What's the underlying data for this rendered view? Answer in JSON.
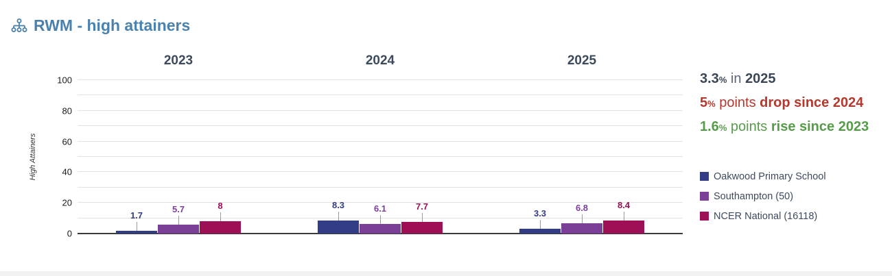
{
  "title": {
    "text": "RWM - high attainers",
    "color": "#4a82ad",
    "icon": "sitemap-icon"
  },
  "chart_data": {
    "type": "bar",
    "title": "RWM - high attainers",
    "xlabel": "",
    "ylabel": "High Attainers",
    "ylim": [
      0,
      100
    ],
    "yticks": [
      0,
      20,
      40,
      60,
      80,
      100
    ],
    "grid": true,
    "gridline_step": 10,
    "legend_position": "right",
    "categories": [
      "2023",
      "2024",
      "2025"
    ],
    "series": [
      {
        "name": "Oakwood Primary School",
        "color": "#333d85",
        "values": [
          1.7,
          8.3,
          3.3
        ],
        "value_labels": [
          "1.7",
          "8.3",
          "3.3"
        ]
      },
      {
        "name": "Southampton (50)",
        "color": "#7b3f98",
        "values": [
          5.7,
          6.1,
          6.8
        ],
        "value_labels": [
          "5.7",
          "6.1",
          "6.8"
        ]
      },
      {
        "name": "NCER National (16118)",
        "color": "#9e0f55",
        "values": [
          8.0,
          7.7,
          8.4
        ],
        "value_labels": [
          "8",
          "7.7",
          "8.4"
        ]
      }
    ]
  },
  "annotations": [
    {
      "name": "latest-value",
      "color": "#3a4656",
      "segments": [
        {
          "t": "3.3",
          "b": true
        },
        {
          "t": "%",
          "b": true,
          "small": true
        },
        {
          "t": " in ",
          "b": false,
          "c": "#5a6676"
        },
        {
          "t": "2025",
          "b": true
        }
      ]
    },
    {
      "name": "change-since-2024",
      "color": "#b5372d",
      "segments": [
        {
          "t": "5",
          "b": true
        },
        {
          "t": "%",
          "b": true,
          "small": true
        },
        {
          "t": " points ",
          "b": false
        },
        {
          "t": "drop since 2024",
          "b": true
        }
      ]
    },
    {
      "name": "change-since-2023",
      "color": "#569c48",
      "segments": [
        {
          "t": "1.6",
          "b": true
        },
        {
          "t": "%",
          "b": true,
          "small": true
        },
        {
          "t": " points ",
          "b": false
        },
        {
          "t": "rise since 2023",
          "b": true
        }
      ]
    }
  ],
  "colors": {
    "title": "#4a82ad",
    "group_header": "#3d4a5c",
    "gridline": "#e2e2e2",
    "axis_line": "#3a3a3a",
    "legend_text": "#3d4a5c"
  }
}
